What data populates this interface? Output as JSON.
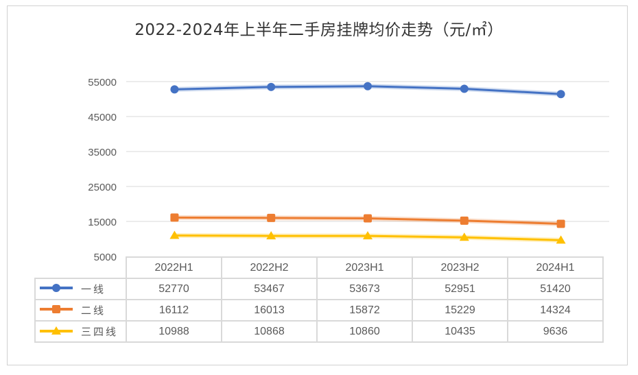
{
  "chart_data": {
    "type": "line",
    "title": "2022-2024年上半年二手房挂牌均价走势（元/㎡）",
    "categories": [
      "2022H1",
      "2022H2",
      "2023H1",
      "2023H2",
      "2024H1"
    ],
    "yticks": [
      "55000",
      "45000",
      "35000",
      "25000",
      "15000",
      "5000"
    ],
    "ylim": [
      5000,
      55000
    ],
    "grid": true,
    "legend": "data-table",
    "series": [
      {
        "name": "一线",
        "color": "#4472C4",
        "marker": "circle",
        "values": [
          52770,
          53467,
          53673,
          52951,
          51420
        ],
        "labels": [
          "52770",
          "53467",
          "53673",
          "52951",
          "51420"
        ]
      },
      {
        "name": "二线",
        "color": "#ED7D31",
        "marker": "square",
        "values": [
          16112,
          16013,
          15872,
          15229,
          14324
        ],
        "labels": [
          "16112",
          "16013",
          "15872",
          "15229",
          "14324"
        ]
      },
      {
        "name": "三四线",
        "color": "#FFC000",
        "marker": "triangle",
        "values": [
          10988,
          10868,
          10860,
          10435,
          9636
        ],
        "labels": [
          "10988",
          "10868",
          "10860",
          "10435",
          "9636"
        ]
      }
    ]
  }
}
